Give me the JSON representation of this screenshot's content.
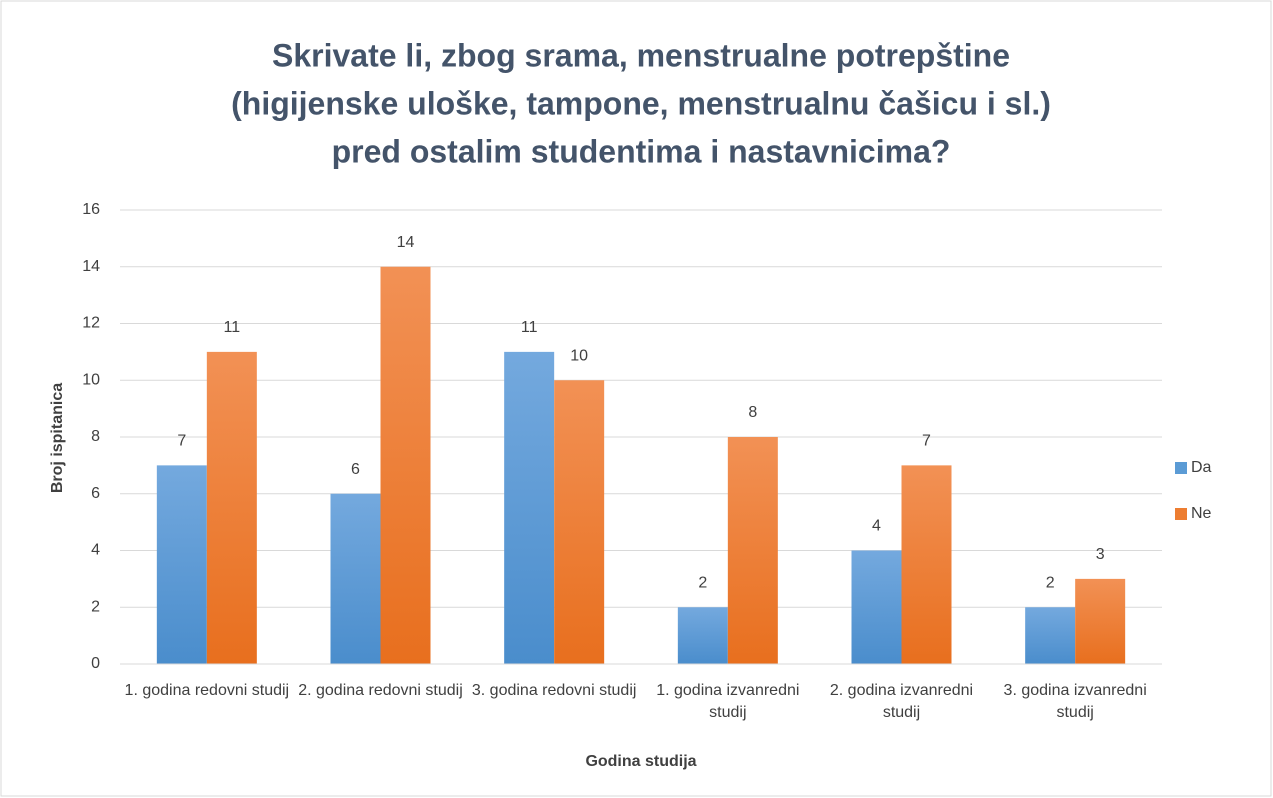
{
  "chart_data": {
    "type": "bar",
    "title": [
      "Skrivate li, zbog srama, menstrualne potrepštine",
      "(higijenske uloške, tampone, menstrualnu čašicu i sl.)",
      "pred ostalim studentima i nastavnicima?"
    ],
    "xlabel": "Godina studija",
    "ylabel": "Broj ispitanica",
    "categories": [
      "1. godina redovni studij",
      "2. godina redovni studij",
      "3. godina redovni studij",
      "1. godina izvanredni studij",
      "2. godina izvanredni studij",
      "3. godina izvanredni studij"
    ],
    "series": [
      {
        "name": "Da",
        "color": "#5b9bd5",
        "values": [
          7,
          6,
          11,
          2,
          4,
          2
        ]
      },
      {
        "name": "Ne",
        "color": "#ed7d31",
        "values": [
          11,
          14,
          10,
          8,
          7,
          3
        ]
      }
    ],
    "ylim": [
      0,
      16
    ],
    "yticks": [
      0,
      2,
      4,
      6,
      8,
      10,
      12,
      14,
      16
    ],
    "grid": true,
    "legend": "right"
  }
}
